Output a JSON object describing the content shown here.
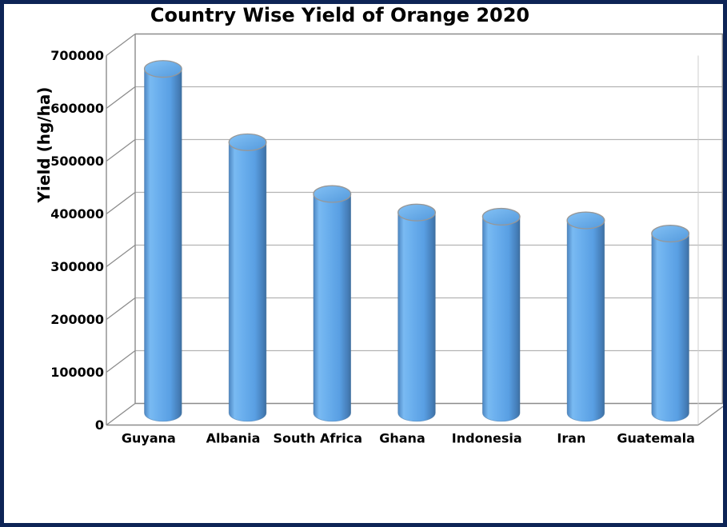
{
  "window": {
    "background": "#ffffff",
    "border_color": "#0d2456"
  },
  "chart_data": {
    "type": "bar",
    "subtype": "3d-cylinder",
    "title": "Country Wise Yield of Orange 2020",
    "xlabel": "",
    "ylabel": "Yield (hg/ha)",
    "categories": [
      "Guyana",
      "Albania",
      "South Africa",
      "Ghana",
      "Indonesia",
      "Iran",
      "Guatemala"
    ],
    "values": [
      652000,
      513000,
      415000,
      380000,
      372000,
      365000,
      340000
    ],
    "ylim": [
      0,
      700000
    ],
    "ytick_step": 100000,
    "ytick_labels": [
      "0",
      "100000",
      "200000",
      "300000",
      "400000",
      "500000",
      "600000",
      "700000"
    ],
    "grid": true,
    "legend": null,
    "colors": {
      "grid_color": "#b3b3b3",
      "frame_color": "#8c8c8c",
      "faint_frame_color": "#cfcfcf",
      "bar_body_gradient": [
        "#4d86c2",
        "#79baf2",
        "#6cb0ee",
        "#599fe3",
        "#447cb6",
        "#3e6f9f"
      ],
      "bar_body_offsets": [
        0,
        0.15,
        0.35,
        0.7,
        0.93,
        1
      ],
      "bar_cap_gradient": [
        "#83c1f5",
        "#549add"
      ],
      "bar_cap_stroke": "#979797",
      "bar_bottom_rim": "#3e6f9f",
      "text_color": "#000000"
    }
  }
}
